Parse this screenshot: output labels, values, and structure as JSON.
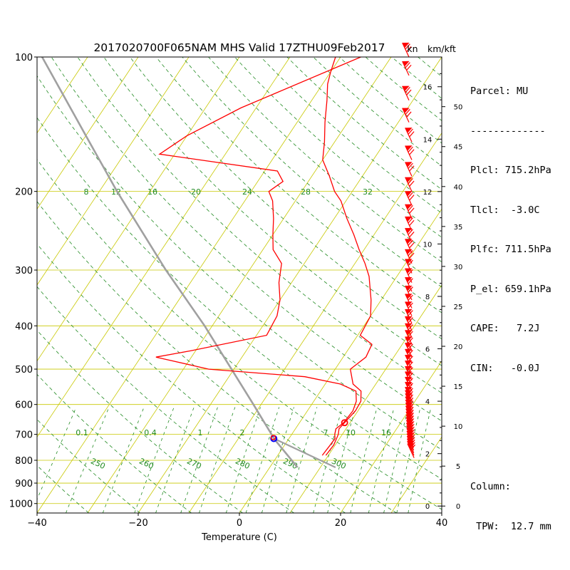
{
  "title": "2017020700F065NAM MHS Valid 17ZTHU09Feb2017",
  "height_units": {
    "kn": "kn",
    "kmkft": "km/kft"
  },
  "parcel_info": {
    "lines": [
      "Parcel: MU",
      "-------------",
      "Plcl: 715.2hPa",
      "Tlcl:  -3.0C",
      "Plfc: 711.5hPa",
      "P_el: 659.1hPa",
      "CAPE:   7.2J",
      "CIN:   -0.0J"
    ],
    "column_lines": [
      "Column:",
      " TPW:  12.7 mm"
    ]
  },
  "colors": {
    "temperature": "#ff0000",
    "dewpoint": "#ff0000",
    "parcel": "#a0a0a0",
    "isotherm": "#c8c800",
    "dry_adiabat": "#228b22",
    "mixing_ratio": "#228b22",
    "wind_barb": "#ff0000",
    "lcl_marker": "#0000ff"
  },
  "chart_data": {
    "type": "skew-t",
    "xlabel": "Temperature (C)",
    "ylabel": "",
    "x_ticks": [
      -40,
      -20,
      0,
      20,
      40
    ],
    "xlim": [
      -40,
      40
    ],
    "y_scale": "log",
    "ylim": [
      1050,
      100
    ],
    "pressure_ticks": [
      100,
      200,
      300,
      400,
      500,
      600,
      700,
      800,
      900,
      1000
    ],
    "isotherms_C": [
      -100,
      -90,
      -80,
      -70,
      -60,
      -50,
      -40,
      -30,
      -20,
      -10,
      0,
      10,
      20,
      30,
      40
    ],
    "dry_adiabat_labels_K": [
      250,
      260,
      270,
      280,
      290,
      300
    ],
    "mixing_ratio_labels_upper": [
      "8",
      "12",
      "16",
      "20",
      "24",
      "28",
      "32"
    ],
    "mixing_ratio_labels_lower": [
      "0.1",
      "0.4",
      "1",
      "2",
      "7",
      "10",
      "16"
    ],
    "temperature_profile": [
      [
        780,
        9.5
      ],
      [
        740,
        9.7
      ],
      [
        715,
        9.4
      ],
      [
        700,
        9.2
      ],
      [
        680,
        8.6
      ],
      [
        660,
        8.9
      ],
      [
        620,
        9.5
      ],
      [
        590,
        9.3
      ],
      [
        560,
        8.0
      ],
      [
        540,
        5.5
      ],
      [
        500,
        3.0
      ],
      [
        470,
        4.5
      ],
      [
        440,
        4.0
      ],
      [
        420,
        0.5
      ],
      [
        380,
        0.0
      ],
      [
        350,
        -2.0
      ],
      [
        310,
        -5.5
      ],
      [
        290,
        -8.0
      ],
      [
        270,
        -11.0
      ],
      [
        250,
        -14.0
      ],
      [
        230,
        -17.5
      ],
      [
        210,
        -21.0
      ],
      [
        200,
        -23.5
      ],
      [
        185,
        -26.5
      ],
      [
        170,
        -30.0
      ],
      [
        155,
        -32.0
      ],
      [
        140,
        -34.5
      ],
      [
        125,
        -37.0
      ],
      [
        115,
        -39.0
      ],
      [
        108,
        -40.0
      ],
      [
        100,
        -41.0
      ]
    ],
    "dewpoint_profile": [
      [
        780,
        8.8
      ],
      [
        740,
        9.0
      ],
      [
        715,
        9.1
      ],
      [
        700,
        8.5
      ],
      [
        680,
        8.0
      ],
      [
        660,
        8.7
      ],
      [
        620,
        9.0
      ],
      [
        590,
        8.4
      ],
      [
        560,
        7.0
      ],
      [
        540,
        3.0
      ],
      [
        520,
        -5.0
      ],
      [
        500,
        -25.0
      ],
      [
        470,
        -37.0
      ],
      [
        455,
        -31.0
      ],
      [
        420,
        -18.0
      ],
      [
        380,
        -18.5
      ],
      [
        350,
        -20.0
      ],
      [
        320,
        -22.5
      ],
      [
        290,
        -24.5
      ],
      [
        270,
        -28.0
      ],
      [
        250,
        -30.0
      ],
      [
        230,
        -32.0
      ],
      [
        210,
        -34.5
      ],
      [
        200,
        -36.5
      ],
      [
        190,
        -35.0
      ],
      [
        180,
        -37.5
      ],
      [
        165,
        -63.0
      ],
      [
        150,
        -60.0
      ],
      [
        130,
        -53.0
      ],
      [
        100,
        -36.0
      ]
    ],
    "parcel_profile": [
      [
        830,
        5.5
      ],
      [
        715,
        -3.0
      ],
      [
        700,
        -4.0
      ],
      [
        600,
        -11.5
      ],
      [
        500,
        -20.5
      ],
      [
        400,
        -31.5
      ],
      [
        300,
        -46.5
      ],
      [
        200,
        -66.5
      ],
      [
        150,
        -80.0
      ],
      [
        100,
        -99.0
      ]
    ],
    "parcel_surface_branch": [
      [
        715,
        -3.0
      ],
      [
        830,
        13.0
      ]
    ],
    "lcl": {
      "pressure_hPa": 715.2,
      "temperature_C": -3.0
    },
    "lfc": {
      "pressure_hPa": 711.5
    },
    "el": {
      "pressure_hPa": 659.1
    },
    "height_km_ticks": [
      0,
      2,
      4,
      6,
      8,
      10,
      12,
      14,
      16
    ],
    "height_kft_ticks": [
      0,
      5,
      10,
      15,
      20,
      25,
      30,
      35,
      40,
      45,
      50
    ],
    "wind_barb_pressures": [
      790,
      780,
      770,
      760,
      750,
      740,
      730,
      720,
      710,
      700,
      690,
      680,
      670,
      660,
      650,
      640,
      630,
      620,
      610,
      600,
      590,
      575,
      560,
      545,
      530,
      515,
      500,
      485,
      470,
      455,
      440,
      425,
      410,
      395,
      380,
      365,
      350,
      335,
      320,
      305,
      290,
      275,
      260,
      245,
      230,
      215,
      200,
      185,
      170,
      155,
      140,
      125,
      110,
      100
    ]
  }
}
